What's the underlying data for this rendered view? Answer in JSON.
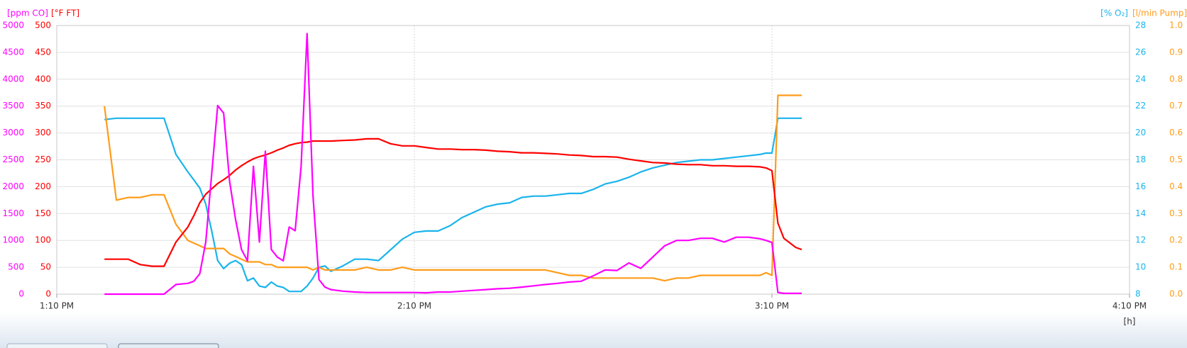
{
  "chart_data": {
    "type": "line",
    "x": [
      8,
      10,
      12,
      14,
      16,
      18,
      20,
      22,
      23,
      24,
      25,
      26,
      27,
      28,
      29,
      30,
      31,
      32,
      33,
      34,
      35,
      36,
      37,
      38,
      39,
      40,
      41,
      42,
      43,
      44,
      45,
      46,
      48,
      50,
      52,
      54,
      56,
      58,
      60,
      62,
      64,
      66,
      68,
      70,
      72,
      74,
      76,
      78,
      80,
      82,
      84,
      86,
      88,
      90,
      92,
      94,
      96,
      98,
      100,
      102,
      104,
      106,
      108,
      110,
      112,
      114,
      116,
      118,
      119,
      120,
      121,
      122,
      124,
      125
    ],
    "xlim": [
      0,
      180
    ],
    "xticks": [
      {
        "value": 0,
        "label": "1:10 PM"
      },
      {
        "value": 60,
        "label": "2:10 PM"
      },
      {
        "value": 120,
        "label": "3:10 PM"
      },
      {
        "value": 180,
        "label": "4:10 PM"
      }
    ],
    "xlabel": "[h]",
    "grid": true,
    "axes": [
      {
        "title": "[ppm CO]",
        "color": "#ff00ff",
        "side": "left",
        "ylim": [
          0,
          5000
        ],
        "yticks": [
          0,
          500,
          1000,
          1500,
          2000,
          2500,
          3000,
          3500,
          4000,
          4500,
          5000
        ]
      },
      {
        "title": "[°F FT]",
        "color": "#ff0000",
        "side": "left",
        "ylim": [
          0,
          500
        ],
        "yticks": [
          0,
          50,
          100,
          150,
          200,
          250,
          300,
          350,
          400,
          450,
          500
        ]
      },
      {
        "title": "[% O₂]",
        "color": "#1ab4ec",
        "side": "right",
        "ylim": [
          8,
          28
        ],
        "yticks": [
          8,
          10,
          12,
          14,
          16,
          18,
          20,
          22,
          24,
          26,
          28
        ]
      },
      {
        "title": "[l/min Pump]",
        "color": "#ff9c1a",
        "side": "right",
        "ylim": [
          0,
          1
        ],
        "yticks": [
          {
            "value": 0,
            "label": "0.0"
          },
          0.1,
          0.2,
          0.3,
          0.4,
          0.5,
          0.6,
          0.7,
          0.8,
          0.9,
          {
            "value": 1,
            "label": "1.0"
          }
        ]
      }
    ],
    "series": [
      {
        "color": "#1ab4ec",
        "axis": 2,
        "values": [
          21.0,
          21.1,
          21.1,
          21.1,
          21.1,
          21.1,
          18.4,
          17.1,
          16.5,
          15.9,
          14.7,
          12.7,
          10.5,
          9.9,
          10.3,
          10.5,
          10.2,
          9.0,
          9.2,
          8.6,
          8.5,
          8.9,
          8.6,
          8.5,
          8.2,
          8.2,
          8.2,
          8.6,
          9.2,
          10.0,
          10.1,
          9.7,
          10.1,
          10.6,
          10.6,
          10.5,
          11.3,
          12.1,
          12.6,
          12.7,
          12.7,
          13.1,
          13.7,
          14.1,
          14.5,
          14.7,
          14.8,
          15.2,
          15.3,
          15.3,
          15.4,
          15.5,
          15.5,
          15.8,
          16.2,
          16.4,
          16.7,
          17.1,
          17.4,
          17.6,
          17.8,
          17.9,
          18.0,
          18.0,
          18.1,
          18.2,
          18.3,
          18.4,
          18.5,
          18.5,
          21.1,
          21.1,
          21.1,
          21.1
        ]
      },
      {
        "color": "#ff9c1a",
        "axis": 3,
        "values": [
          0.7,
          0.35,
          0.36,
          0.36,
          0.37,
          0.37,
          0.26,
          0.2,
          0.19,
          0.18,
          0.17,
          0.17,
          0.17,
          0.17,
          0.15,
          0.14,
          0.13,
          0.12,
          0.12,
          0.12,
          0.11,
          0.11,
          0.1,
          0.1,
          0.1,
          0.1,
          0.1,
          0.1,
          0.09,
          0.1,
          0.09,
          0.09,
          0.09,
          0.09,
          0.1,
          0.09,
          0.09,
          0.1,
          0.09,
          0.09,
          0.09,
          0.09,
          0.09,
          0.09,
          0.09,
          0.09,
          0.09,
          0.09,
          0.09,
          0.09,
          0.08,
          0.07,
          0.07,
          0.06,
          0.06,
          0.06,
          0.06,
          0.06,
          0.06,
          0.05,
          0.06,
          0.06,
          0.07,
          0.07,
          0.07,
          0.07,
          0.07,
          0.07,
          0.08,
          0.07,
          0.74,
          0.74,
          0.74,
          0.74
        ]
      },
      {
        "color": "#ff0000",
        "axis": 1,
        "values": [
          65,
          65,
          65,
          55,
          52,
          52,
          97,
          125,
          146,
          170,
          186,
          196,
          206,
          213,
          221,
          231,
          239,
          246,
          252,
          256,
          259,
          263,
          268,
          272,
          277,
          280,
          282,
          283,
          285,
          285,
          285,
          285,
          286,
          287,
          289,
          289,
          280,
          276,
          276,
          273,
          270,
          270,
          269,
          269,
          268,
          266,
          265,
          263,
          263,
          262,
          261,
          259,
          258,
          256,
          256,
          255,
          251,
          248,
          245,
          244,
          242,
          241,
          241,
          239,
          239,
          238,
          238,
          237,
          235,
          230,
          132,
          104,
          87,
          83
        ]
      },
      {
        "color": "#ff00ff",
        "axis": 0,
        "values": [
          0,
          0,
          0,
          0,
          0,
          0,
          180,
          200,
          240,
          380,
          970,
          2240,
          3510,
          3370,
          2100,
          1390,
          830,
          620,
          2380,
          970,
          2660,
          830,
          690,
          620,
          1250,
          1180,
          2380,
          4850,
          1820,
          270,
          130,
          85,
          55,
          40,
          30,
          30,
          30,
          30,
          30,
          25,
          40,
          40,
          55,
          70,
          85,
          100,
          110,
          130,
          155,
          180,
          200,
          225,
          240,
          340,
          450,
          440,
          580,
          480,
          690,
          900,
          1000,
          1000,
          1040,
          1040,
          970,
          1060,
          1060,
          1030,
          1000,
          960,
          30,
          15,
          15,
          15
        ]
      }
    ]
  }
}
